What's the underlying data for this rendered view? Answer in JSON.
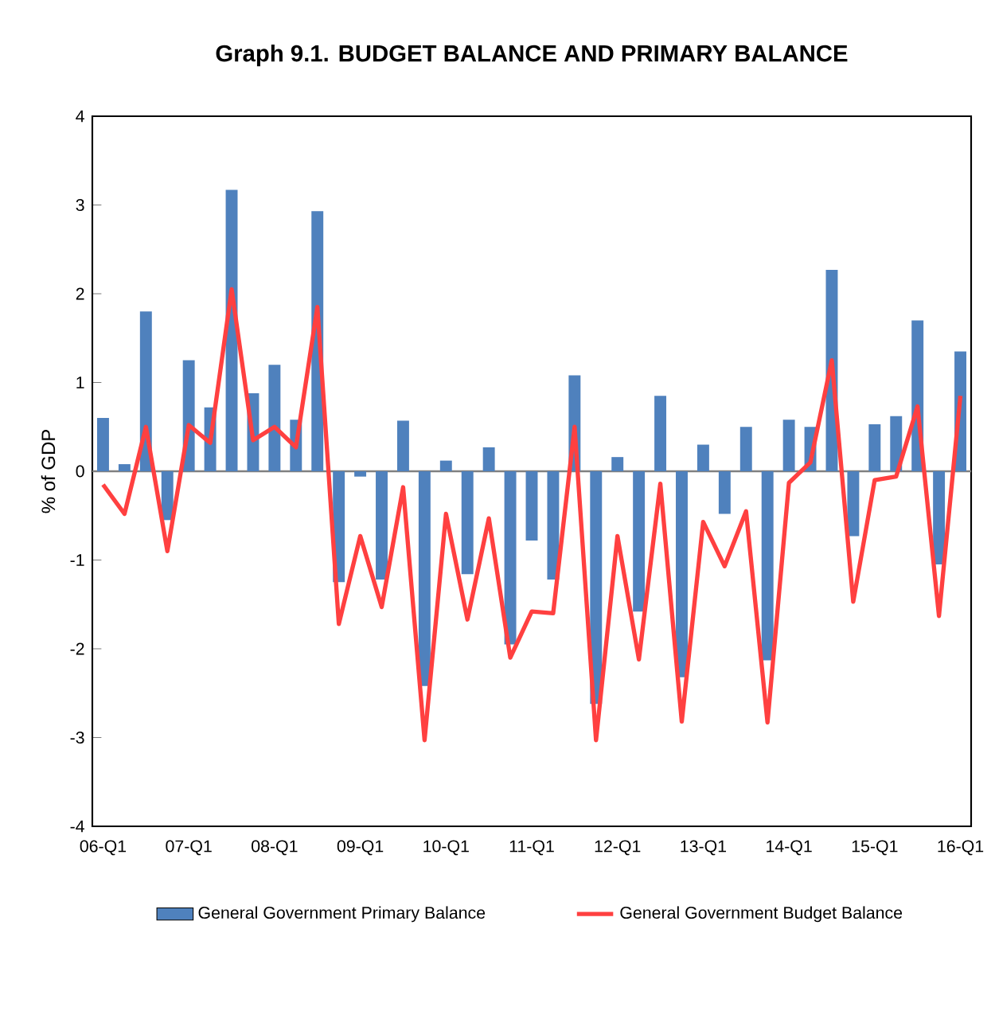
{
  "chart_data": {
    "type": "bar",
    "title": "Graph 9.1. BUDGET BALANCE AND PRIMARY BALANCE",
    "ylabel": "% of GDP",
    "categories": [
      "06-Q1",
      null,
      null,
      null,
      "07-Q1",
      null,
      null,
      null,
      "08-Q1",
      null,
      null,
      null,
      "09-Q1",
      null,
      null,
      null,
      "10-Q1",
      null,
      null,
      null,
      "11-Q1",
      null,
      null,
      null,
      "12-Q1",
      null,
      null,
      null,
      "13-Q1",
      null,
      null,
      null,
      "14-Q1",
      null,
      null,
      null,
      "15-Q1",
      null,
      null,
      null,
      "16-Q1"
    ],
    "series": [
      {
        "name": "General Government Primary Balance",
        "color": "#4f81bd",
        "values": [
          0.6,
          0.08,
          1.8,
          -0.55,
          1.25,
          0.72,
          3.17,
          0.88,
          1.2,
          0.58,
          2.93,
          -1.25,
          -0.06,
          -1.22,
          0.57,
          -2.42,
          0.12,
          -1.16,
          0.27,
          -1.95,
          -0.78,
          -1.22,
          1.08,
          -2.62,
          0.16,
          -1.58,
          0.85,
          -2.32,
          0.3,
          -0.48,
          0.5,
          -2.13,
          0.58,
          0.5,
          2.27,
          -0.73,
          0.53,
          0.62,
          1.7,
          -1.05,
          1.35
        ]
      },
      {
        "name": "General Government Budget Balance",
        "type": "line",
        "color": "#ff4040",
        "values": [
          -0.15,
          -0.48,
          0.5,
          -0.9,
          0.52,
          0.32,
          2.05,
          0.35,
          0.5,
          0.27,
          1.85,
          -1.72,
          -0.73,
          -1.53,
          -0.18,
          -3.03,
          -0.48,
          -1.67,
          -0.53,
          -2.1,
          -1.58,
          -1.6,
          0.5,
          -3.03,
          -0.73,
          -2.12,
          -0.14,
          -2.82,
          -0.57,
          -1.07,
          -0.45,
          -2.83,
          -0.13,
          0.1,
          1.25,
          -1.47,
          -0.1,
          -0.06,
          0.73,
          -1.63,
          0.85
        ]
      }
    ],
    "ylim": [
      -4,
      4
    ],
    "yticks": [
      -4,
      -3,
      -2,
      -1,
      0,
      1,
      2,
      3,
      4
    ],
    "legend": "bottom"
  }
}
